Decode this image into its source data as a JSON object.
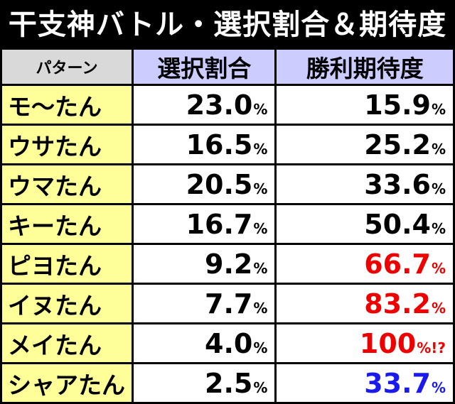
{
  "title": "干支神バトル・選択割合＆期待度",
  "headers": {
    "pattern": "パターン",
    "selection": "選択割合",
    "win": "勝利期待度"
  },
  "rows": [
    {
      "name": "モ〜たん",
      "selection": "23.0",
      "selection_unit": "%",
      "win": "15.9",
      "win_unit": "%",
      "win_color": "black"
    },
    {
      "name": "ウサたん",
      "selection": "16.5",
      "selection_unit": "%",
      "win": "25.2",
      "win_unit": "%",
      "win_color": "black"
    },
    {
      "name": "ウマたん",
      "selection": "20.5",
      "selection_unit": "%",
      "win": "33.6",
      "win_unit": "%",
      "win_color": "black"
    },
    {
      "name": "キーたん",
      "selection": "16.7",
      "selection_unit": "%",
      "win": "50.4",
      "win_unit": "%",
      "win_color": "black"
    },
    {
      "name": "ピヨたん",
      "selection": "9.2",
      "selection_unit": "%",
      "win": "66.7",
      "win_unit": "%",
      "win_color": "red"
    },
    {
      "name": "イヌたん",
      "selection": "7.7",
      "selection_unit": "%",
      "win": "83.2",
      "win_unit": "%",
      "win_color": "red"
    },
    {
      "name": "メイたん",
      "selection": "4.0",
      "selection_unit": "%",
      "win": "100",
      "win_unit": "%!?",
      "win_color": "red"
    },
    {
      "name": "シャアたん",
      "selection": "2.5",
      "selection_unit": "%",
      "win": "33.7",
      "win_unit": "%",
      "win_color": "blue"
    }
  ],
  "colors": {
    "header_pattern_bg": "#d9d9d9",
    "header_col_bg": "#ccccff",
    "name_bg": "#ffff99",
    "red": "#ee0000",
    "blue": "#1a1aee"
  }
}
